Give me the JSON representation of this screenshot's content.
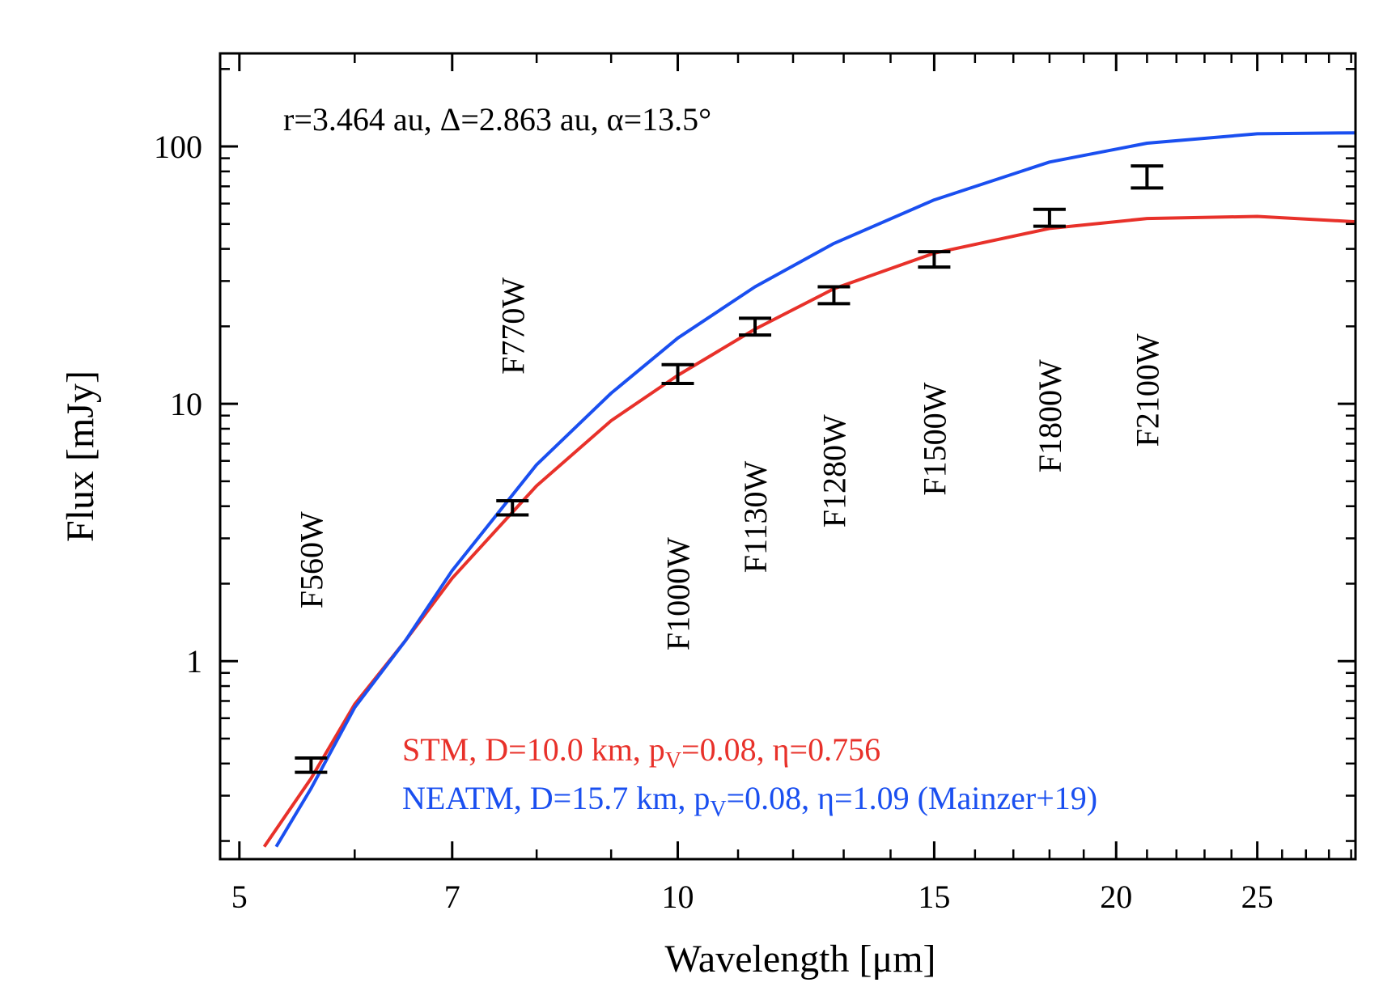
{
  "chart_data": {
    "type": "line",
    "title": "",
    "xlabel": "Wavelength [μm]",
    "ylabel": "Flux [mJy]",
    "xscale": "log",
    "yscale": "log",
    "xlim": [
      4.85,
      29.2
    ],
    "ylim": [
      0.17,
      230
    ],
    "xticks": [
      5,
      7,
      10,
      15,
      20,
      25
    ],
    "yticks": [
      1,
      10,
      100
    ],
    "annotation": "r=3.464 au, Δ=2.863 au, α=13.5°",
    "series": [
      {
        "name": "STM",
        "legend_main": "STM, D=10.0 km, p",
        "legend_sub": "V",
        "legend_rest": "=0.08, η=0.756",
        "color": "#e8312a",
        "x": [
          5.2,
          5.6,
          6.0,
          6.5,
          7.0,
          8.0,
          9.0,
          10.0,
          11.3,
          12.8,
          15.0,
          18.0,
          21.0,
          25.0,
          29.2
        ],
        "y": [
          0.19,
          0.35,
          0.68,
          1.2,
          2.1,
          4.8,
          8.6,
          12.9,
          19.5,
          28.0,
          38.5,
          48.0,
          52.5,
          53.5,
          51.0
        ]
      },
      {
        "name": "NEATM",
        "legend_main": "NEATM, D=15.7 km, p",
        "legend_sub": "V",
        "legend_rest": "=0.08, η=1.09 (Mainzer+19)",
        "color": "#1a4ff0",
        "x": [
          5.3,
          5.6,
          6.0,
          6.5,
          7.0,
          8.0,
          9.0,
          10.0,
          11.3,
          12.8,
          15.0,
          18.0,
          21.0,
          25.0,
          29.2
        ],
        "y": [
          0.19,
          0.32,
          0.66,
          1.2,
          2.25,
          5.8,
          11.0,
          18.0,
          28.5,
          42.0,
          62.0,
          87.0,
          103.0,
          112.0,
          113.0
        ]
      }
    ],
    "measurements": [
      {
        "filter": "F560W",
        "x": 5.6,
        "y": 0.39,
        "ylo": 0.37,
        "yhi": 0.42
      },
      {
        "filter": "F770W",
        "x": 7.7,
        "y": 3.9,
        "ylo": 3.7,
        "yhi": 4.2
      },
      {
        "filter": "F1000W",
        "x": 10.0,
        "y": 13.0,
        "ylo": 12.0,
        "yhi": 14.2
      },
      {
        "filter": "F1130W",
        "x": 11.3,
        "y": 20.0,
        "ylo": 18.5,
        "yhi": 21.5
      },
      {
        "filter": "F1280W",
        "x": 12.8,
        "y": 26.5,
        "ylo": 24.5,
        "yhi": 28.5
      },
      {
        "filter": "F1500W",
        "x": 15.0,
        "y": 36.5,
        "ylo": 34.0,
        "yhi": 39.0
      },
      {
        "filter": "F1800W",
        "x": 18.0,
        "y": 53.0,
        "ylo": 49.0,
        "yhi": 57.0
      },
      {
        "filter": "F2100W",
        "x": 21.0,
        "y": 76.0,
        "ylo": 69.0,
        "yhi": 84.0
      }
    ],
    "filter_label_anchor_flux": [
      1.6,
      13.0,
      1.1,
      2.2,
      3.3,
      4.4,
      5.4,
      6.8
    ]
  }
}
